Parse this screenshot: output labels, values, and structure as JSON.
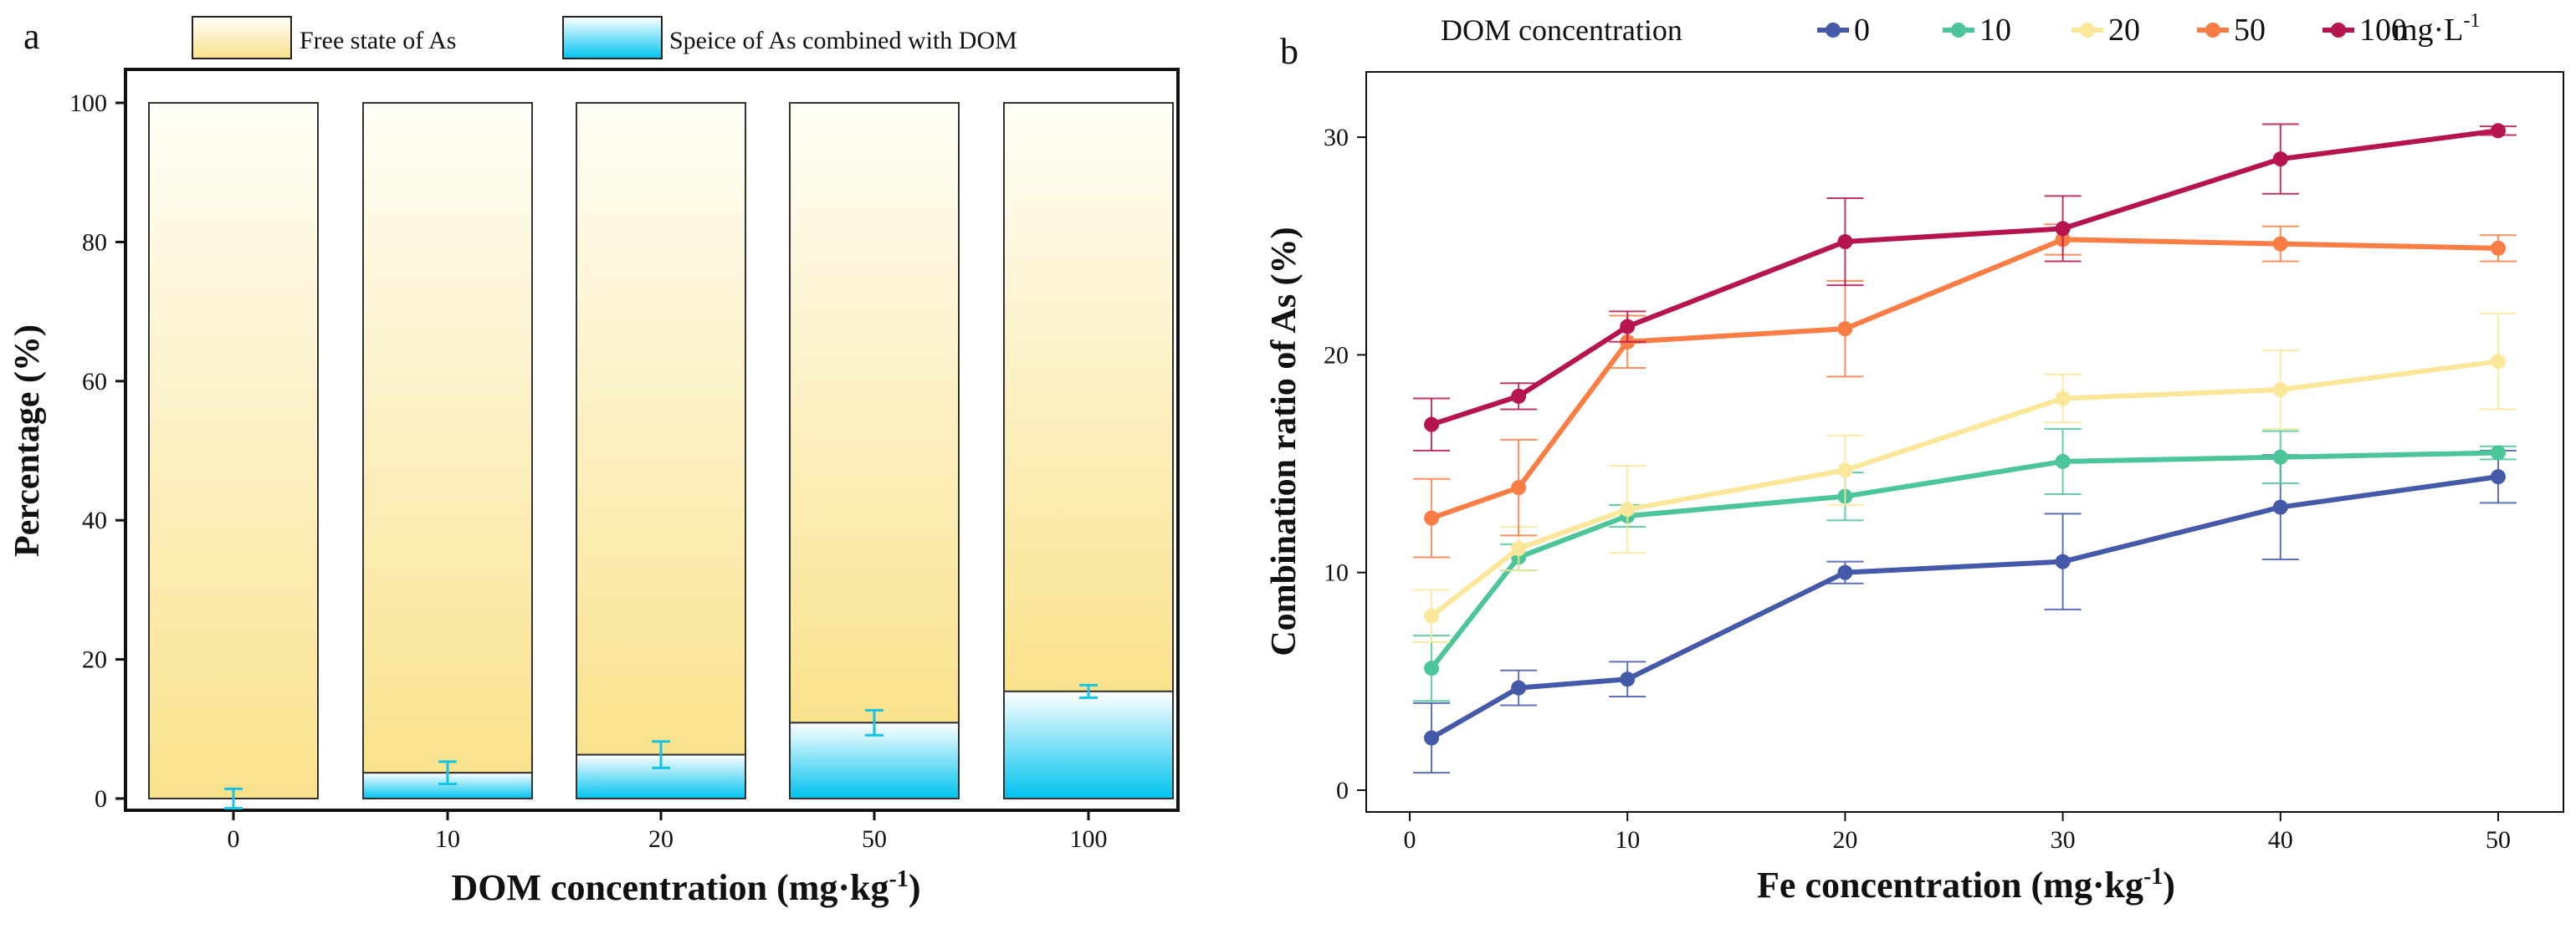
{
  "figure": {
    "colors": {
      "free_top": "#fffef7",
      "free_bottom": "#f9e28c",
      "combined_top": "#ffffff",
      "combined_bottom": "#00c3ef",
      "error_cyan": "#18c2e6"
    }
  },
  "chart_data": [
    {
      "panel_label": "a",
      "type": "bar",
      "stacked": true,
      "title": "",
      "xlabel_main": "DOM concentration (mg·kg",
      "xlabel_sup": "-1",
      "xlabel_end": ")",
      "ylabel": "Percentage (%)",
      "ylim": [
        0,
        100
      ],
      "yticks": [
        0,
        20,
        40,
        60,
        80,
        100
      ],
      "categories": [
        "0",
        "10",
        "20",
        "50",
        "100"
      ],
      "legend": [
        {
          "name": "Free state of As",
          "style": "free"
        },
        {
          "name": "Speice of As combined with DOM",
          "style": "combined"
        }
      ],
      "series": [
        {
          "name": "Speice of As combined with DOM",
          "values": [
            0.0,
            3.7,
            6.3,
            10.9,
            15.4
          ],
          "errors": [
            1.4,
            1.6,
            1.9,
            1.8,
            0.9
          ]
        },
        {
          "name": "Free state of As",
          "values": [
            100.0,
            96.3,
            93.7,
            89.1,
            84.6
          ]
        }
      ]
    },
    {
      "panel_label": "b",
      "type": "line",
      "title": "",
      "xlabel_main": "Fe concentration (mg·kg",
      "xlabel_sup": "-1",
      "xlabel_end": ")",
      "ylabel": "Combination ratio of As (%)",
      "xlim": [
        -2,
        53
      ],
      "ylim": [
        -1,
        33
      ],
      "xticks": [
        0,
        10,
        20,
        30,
        40,
        50
      ],
      "yticks": [
        0,
        10,
        20,
        30
      ],
      "x": [
        1,
        5,
        10,
        20,
        30,
        40,
        50
      ],
      "legend_title": "DOM concentration",
      "legend_unit_main": "mg·L",
      "legend_unit_sup": "-1",
      "series": [
        {
          "name": "0",
          "color": "#4459a8",
          "values": [
            2.4,
            4.7,
            5.1,
            10.0,
            10.5,
            13.0,
            14.4
          ],
          "errors": [
            1.6,
            0.8,
            0.8,
            0.5,
            2.2,
            2.4,
            1.2
          ]
        },
        {
          "name": "10",
          "color": "#4cc698",
          "values": [
            5.6,
            10.7,
            12.6,
            13.5,
            15.1,
            15.3,
            15.5
          ],
          "errors": [
            1.5,
            0.6,
            0.5,
            1.1,
            1.5,
            1.2,
            0.3
          ]
        },
        {
          "name": "20",
          "color": "#fbe79a",
          "values": [
            8.0,
            11.1,
            12.9,
            14.7,
            18.0,
            18.4,
            19.7
          ],
          "errors": [
            1.2,
            1.0,
            2.0,
            1.6,
            1.1,
            1.8,
            2.2
          ]
        },
        {
          "name": "50",
          "color": "#fb7d46",
          "values": [
            12.5,
            13.9,
            20.6,
            21.2,
            25.3,
            25.1,
            24.9
          ],
          "errors": [
            1.8,
            2.2,
            1.2,
            2.2,
            0.7,
            0.8,
            0.6
          ]
        },
        {
          "name": "100",
          "color": "#b5144f",
          "values": [
            16.8,
            18.1,
            21.3,
            25.2,
            25.8,
            29.0,
            30.3
          ],
          "errors": [
            1.2,
            0.6,
            0.7,
            2.0,
            1.5,
            1.6,
            0.2
          ]
        }
      ]
    }
  ]
}
